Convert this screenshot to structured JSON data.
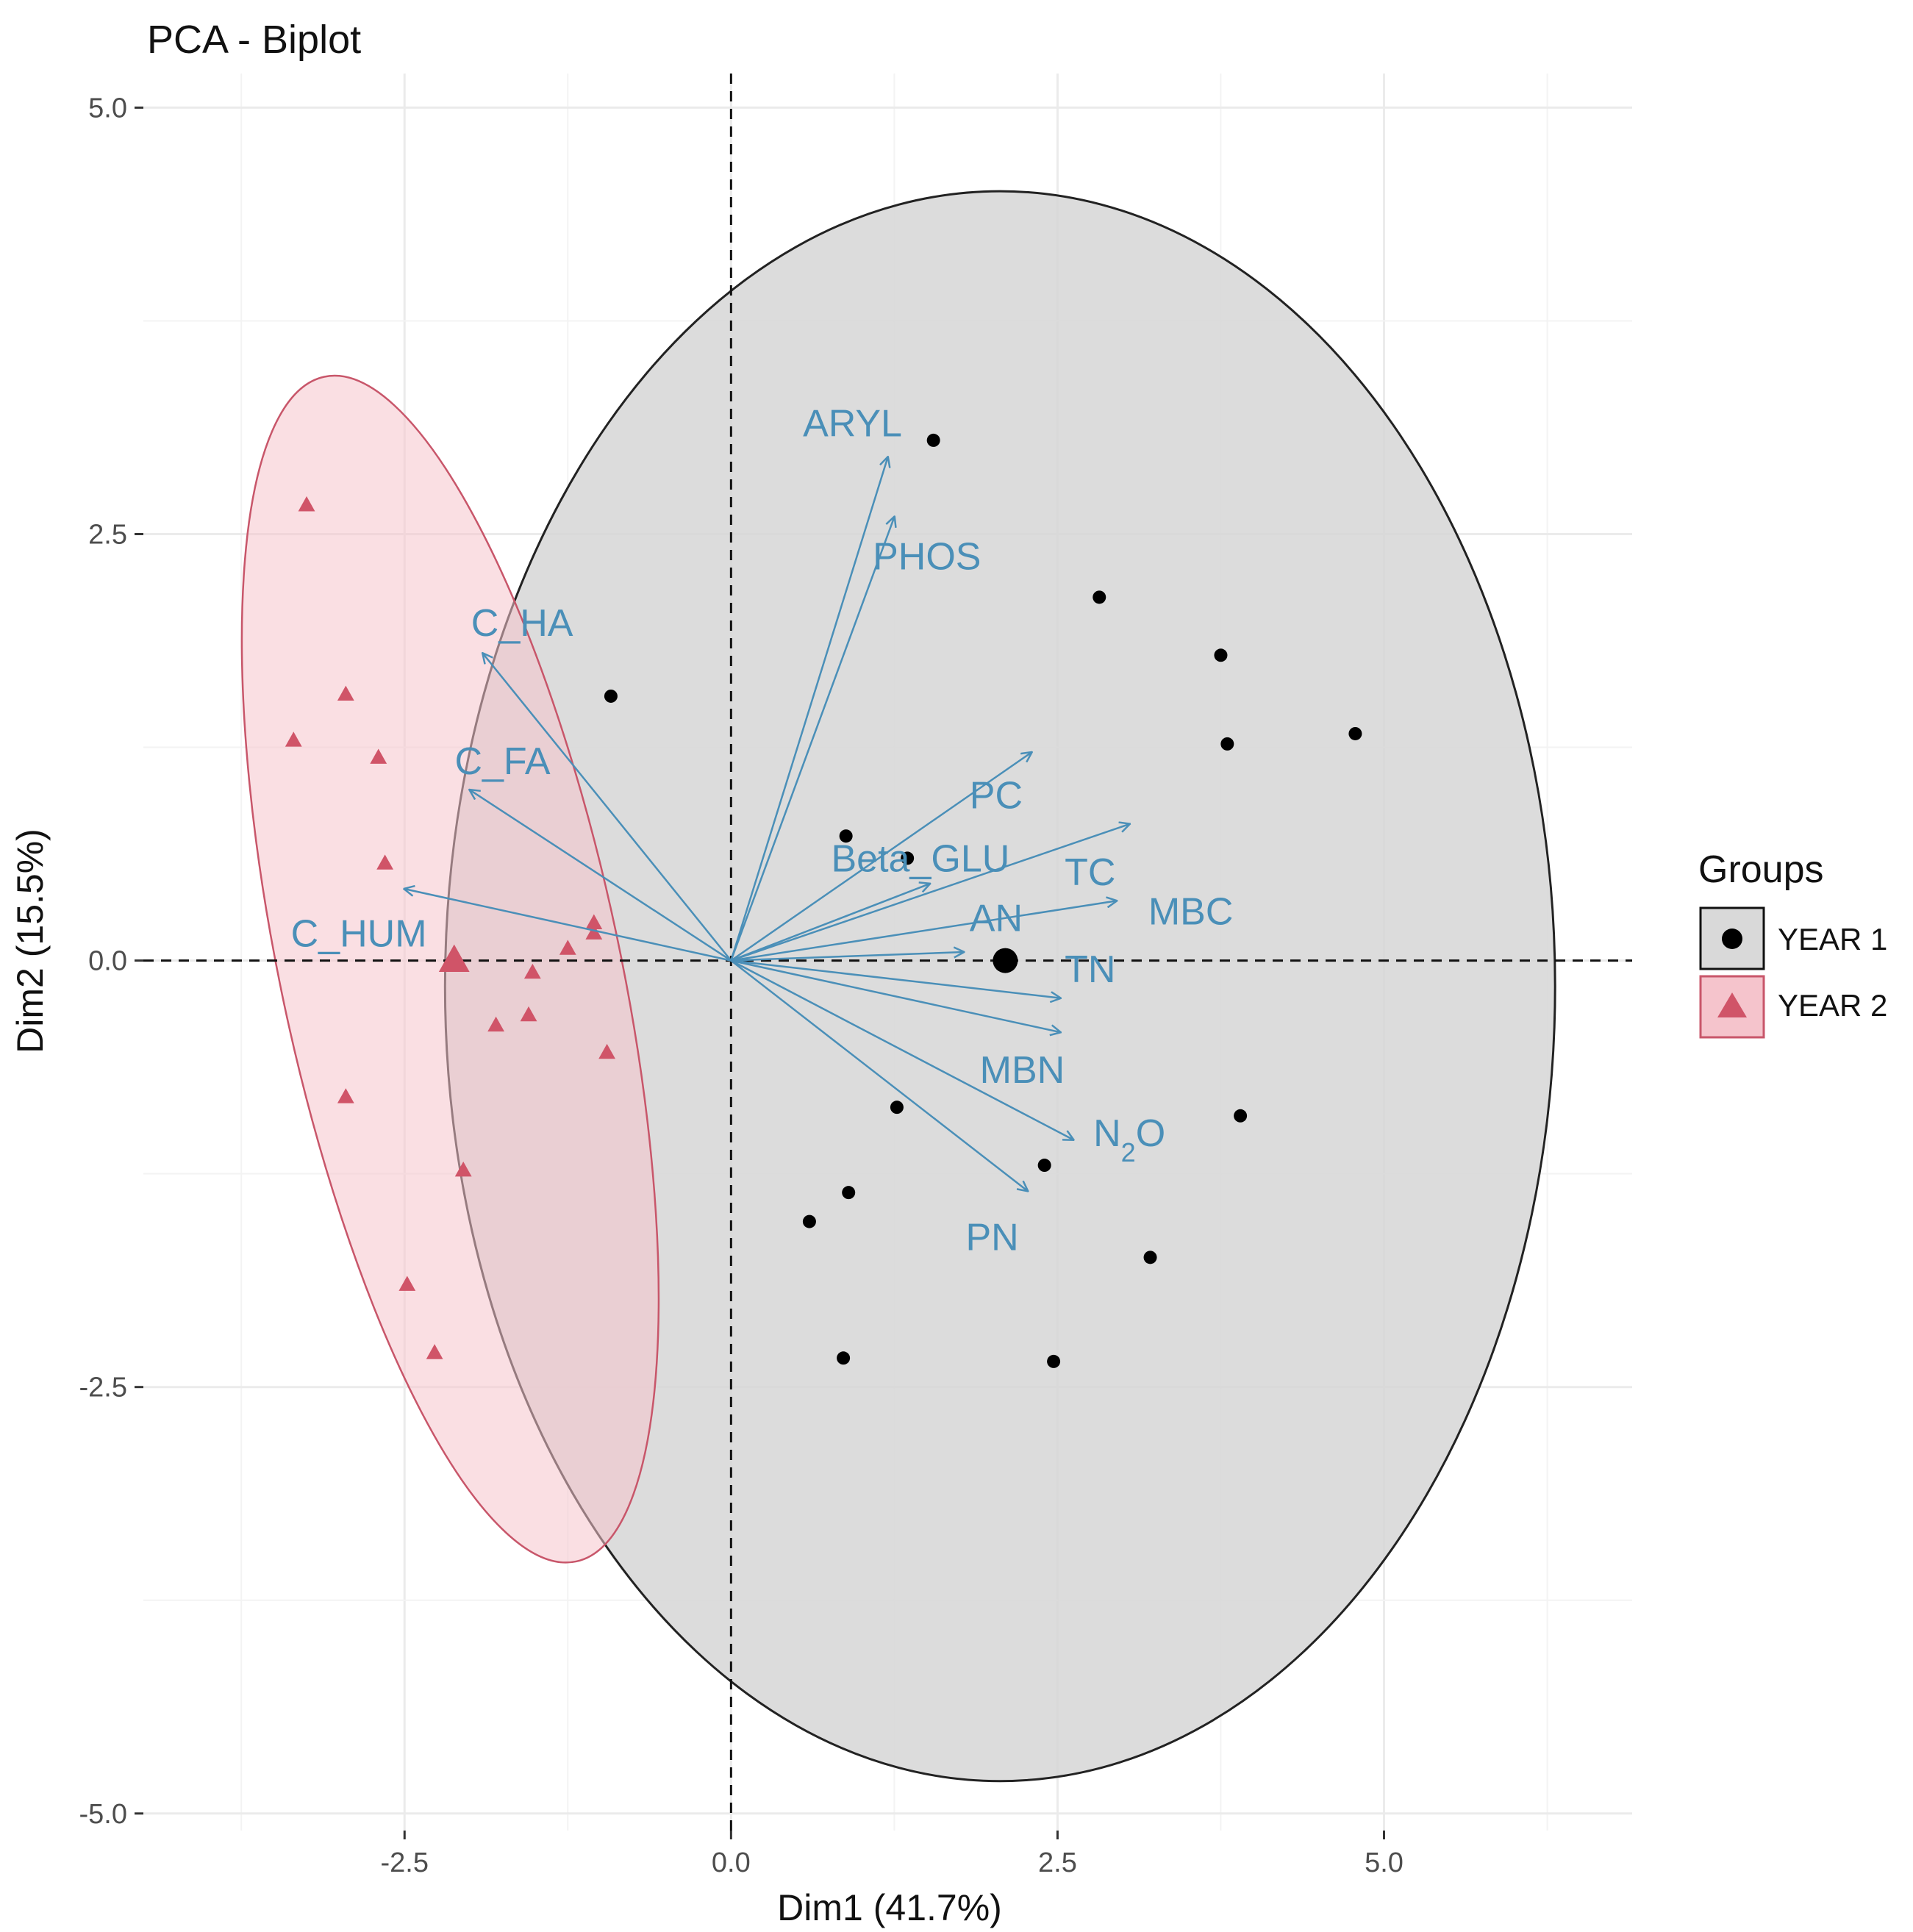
{
  "chart_data": {
    "type": "scatter",
    "title": "PCA - Biplot",
    "xlabel": "Dim1 (41.7%)",
    "ylabel": "Dim2 (15.5%)",
    "xlim": [
      -4.5,
      6.9
    ],
    "ylim": [
      -5.1,
      5.2
    ],
    "xticks": [
      -2.5,
      0.0,
      2.5,
      5.0
    ],
    "xtick_labels": [
      "-2.5",
      "0.0",
      "2.5",
      "5.0"
    ],
    "yticks": [
      5.0,
      2.5,
      0.0,
      -2.5,
      -5.0
    ],
    "ytick_labels": [
      "5.0",
      "2.5",
      "0.0",
      "-2.5",
      "-5.0"
    ],
    "grid": true,
    "legend": {
      "title": "Groups",
      "position": "right",
      "entries": [
        "YEAR 1",
        "YEAR 2"
      ]
    },
    "colors": {
      "year1": "#000000",
      "year2": "#d05468",
      "year1_fill": "#d6d6d6",
      "year2_fill": "#f5c4cc",
      "year2_stroke": "#c8566a",
      "arrow": "#4a8fb8",
      "grid": "#ebebeb",
      "axis_text": "#4d4d4d"
    },
    "series": [
      {
        "name": "YEAR 1",
        "marker": "circle",
        "points": [
          [
            1.55,
            3.05
          ],
          [
            2.82,
            2.13
          ],
          [
            3.75,
            1.79
          ],
          [
            4.78,
            1.33
          ],
          [
            3.8,
            1.27
          ],
          [
            -0.92,
            1.55
          ],
          [
            0.88,
            0.73
          ],
          [
            1.35,
            0.6
          ],
          [
            1.27,
            -0.86
          ],
          [
            3.9,
            -0.91
          ],
          [
            2.4,
            -1.2
          ],
          [
            0.9,
            -1.36
          ],
          [
            0.6,
            -1.53
          ],
          [
            3.21,
            -1.74
          ],
          [
            0.86,
            -2.33
          ],
          [
            2.47,
            -2.35
          ]
        ],
        "centroid": [
          2.1,
          0.0
        ],
        "ellipse": {
          "cx": 2.06,
          "cy": -0.15,
          "rx": 4.25,
          "ry": 4.66,
          "angle": 0
        }
      },
      {
        "name": "YEAR 2",
        "marker": "triangle",
        "points": [
          [
            -3.25,
            2.67
          ],
          [
            -2.95,
            1.56
          ],
          [
            -3.35,
            1.29
          ],
          [
            -2.7,
            1.19
          ],
          [
            -2.65,
            0.57
          ],
          [
            -1.05,
            0.22
          ],
          [
            -1.05,
            0.16
          ],
          [
            -1.25,
            0.07
          ],
          [
            -1.52,
            -0.07
          ],
          [
            -1.55,
            -0.32
          ],
          [
            -1.8,
            -0.38
          ],
          [
            -0.95,
            -0.54
          ],
          [
            -2.95,
            -0.8
          ],
          [
            -2.05,
            -1.23
          ],
          [
            -2.48,
            -1.9
          ],
          [
            -2.27,
            -2.3
          ]
        ],
        "centroid": [
          -2.12,
          0.0
        ],
        "ellipse": {
          "cx": -2.15,
          "cy": -0.05,
          "rx": 1.3,
          "ry": 3.55,
          "angle": -12
        }
      }
    ],
    "variables": [
      {
        "name": "ARYL",
        "x": 1.2,
        "y": 2.95,
        "label_x": 0.93,
        "label_y": 3.15
      },
      {
        "name": "PHOS",
        "x": 1.25,
        "y": 2.6,
        "label_x": 1.5,
        "label_y": 2.37
      },
      {
        "name": "C_HA",
        "x": -1.9,
        "y": 1.8,
        "label_x": -1.6,
        "label_y": 1.98
      },
      {
        "name": "C_FA",
        "x": -2.0,
        "y": 1.0,
        "label_x": -1.75,
        "label_y": 1.17
      },
      {
        "name": "C_HUM",
        "x": -2.5,
        "y": 0.42,
        "label_x": -2.85,
        "label_y": 0.16
      },
      {
        "name": "PC",
        "x": 2.3,
        "y": 1.22,
        "label_x": 2.03,
        "label_y": 0.97
      },
      {
        "name": "Beta_GLU",
        "x": 1.52,
        "y": 0.45,
        "label_x": 1.45,
        "label_y": 0.6
      },
      {
        "name": "TC",
        "x": 3.05,
        "y": 0.8,
        "label_x": 2.75,
        "label_y": 0.52
      },
      {
        "name": "MBC",
        "x": 2.95,
        "y": 0.35,
        "label_x": 3.52,
        "label_y": 0.29
      },
      {
        "name": "AN",
        "x": 1.78,
        "y": 0.05,
        "label_x": 2.03,
        "label_y": 0.25
      },
      {
        "name": "TN",
        "x": 2.52,
        "y": -0.22,
        "label_x": 2.75,
        "label_y": -0.05
      },
      {
        "name": "MBN",
        "x": 2.52,
        "y": -0.42,
        "label_x": 2.23,
        "label_y": -0.64
      },
      {
        "name": "N2O",
        "x": 2.62,
        "y": -1.05,
        "label_x": 3.05,
        "label_y": -1.01
      },
      {
        "name": "PN",
        "x": 2.27,
        "y": -1.35,
        "label_x": 2.0,
        "label_y": -1.62
      }
    ]
  }
}
